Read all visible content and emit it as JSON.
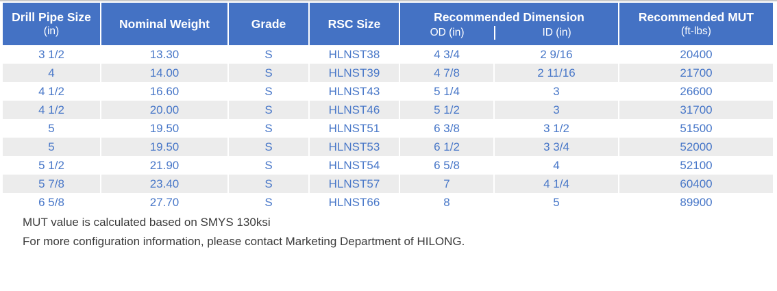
{
  "table": {
    "header": {
      "drill_pipe_size": {
        "title": "Drill Pipe Size",
        "sub": "(in)"
      },
      "nominal_weight": {
        "title": "Nominal Weight"
      },
      "grade": {
        "title": "Grade"
      },
      "rsc_size": {
        "title": "RSC Size"
      },
      "dimension": {
        "title": "Recommended Dimension",
        "od": "OD (in)",
        "id": "ID (in)"
      },
      "mut": {
        "title": "Recommended MUT",
        "sub": "(ft-lbs)"
      }
    },
    "rows": [
      [
        "3 1/2",
        "13.30",
        "S",
        "HLNST38",
        "4 3/4",
        "2 9/16",
        "20400"
      ],
      [
        "4",
        "14.00",
        "S",
        "HLNST39",
        "4 7/8",
        "2 11/16",
        "21700"
      ],
      [
        "4 1/2",
        "16.60",
        "S",
        "HLNST43",
        "5 1/4",
        "3",
        "26600"
      ],
      [
        "4 1/2",
        "20.00",
        "S",
        "HLNST46",
        "5 1/2",
        "3",
        "31700"
      ],
      [
        "5",
        "19.50",
        "S",
        "HLNST51",
        "6 3/8",
        "3 1/2",
        "51500"
      ],
      [
        "5",
        "19.50",
        "S",
        "HLNST53",
        "6 1/2",
        "3 3/4",
        "52000"
      ],
      [
        "5 1/2",
        "21.90",
        "S",
        "HLNST54",
        "6 5/8",
        "4",
        "52100"
      ],
      [
        "5 7/8",
        "23.40",
        "S",
        "HLNST57",
        "7",
        "4 1/4",
        "60400"
      ],
      [
        "6 5/8",
        "27.70",
        "S",
        "HLNST66",
        "8",
        "5",
        "89900"
      ]
    ],
    "notes": [
      "MUT value is calculated based on SMYS 130ksi",
      "For more configuration information, please contact Marketing Department of HILONG."
    ]
  },
  "colors": {
    "header_bg": "#4472C4",
    "body_text": "#4877C8",
    "stripe": "#ECECEC",
    "note_text": "#3A3A3A",
    "top_line": "#C9C9C9"
  }
}
